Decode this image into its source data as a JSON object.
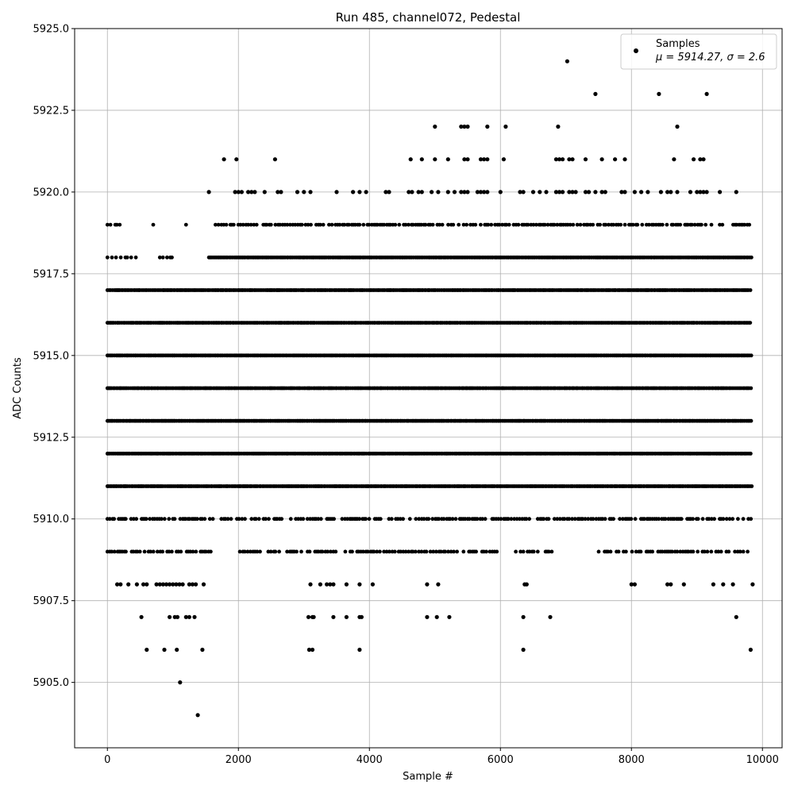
{
  "chart_data": {
    "type": "scatter",
    "title": "Run 485, channel072, Pedestal",
    "xlabel": "Sample #",
    "ylabel": "ADC Counts",
    "xlim": [
      -500,
      10300
    ],
    "ylim": [
      5903,
      5925
    ],
    "xticks": [
      0,
      2000,
      4000,
      6000,
      8000,
      10000
    ],
    "xtick_labels": [
      "0",
      "2000",
      "4000",
      "6000",
      "8000",
      "10000"
    ],
    "yticks": [
      5905.0,
      5907.5,
      5910.0,
      5912.5,
      5915.0,
      5917.5,
      5920.0,
      5922.5,
      5925.0
    ],
    "ytick_labels": [
      "5905.0",
      "5907.5",
      "5910.0",
      "5912.5",
      "5915.0",
      "5917.5",
      "5920.0",
      "5922.5",
      "5925.0"
    ],
    "grid": true,
    "legend_position": "top-right",
    "marker_color": "#000000",
    "series": [
      {
        "name": "Samples",
        "stats_label": "μ = 5914.27, σ = 2.6",
        "mean": 5914.27,
        "sigma": 2.6,
        "n_samples": 9840,
        "x_range": [
          0,
          9840
        ],
        "levels": [
          {
            "y": 5919,
            "x_ranges": [
              [
                0,
                200
              ],
              [
                700,
                720
              ],
              [
                1200,
                1220
              ],
              [
                1650,
                9840
              ]
            ]
          },
          {
            "y": 5918,
            "x_ranges": [
              [
                0,
                500
              ],
              [
                800,
                1000
              ],
              [
                1550,
                9840
              ]
            ]
          },
          {
            "y": 5917,
            "x_ranges": [
              [
                0,
                9840
              ]
            ]
          },
          {
            "y": 5916,
            "x_ranges": [
              [
                0,
                9840
              ]
            ]
          },
          {
            "y": 5915,
            "x_ranges": [
              [
                0,
                9840
              ]
            ]
          },
          {
            "y": 5914,
            "x_ranges": [
              [
                0,
                9840
              ]
            ]
          },
          {
            "y": 5913,
            "x_ranges": [
              [
                0,
                9840
              ]
            ]
          },
          {
            "y": 5912,
            "x_ranges": [
              [
                0,
                9840
              ]
            ]
          },
          {
            "y": 5911,
            "x_ranges": [
              [
                0,
                9840
              ]
            ]
          },
          {
            "y": 5910,
            "x_ranges": [
              [
                0,
                9840
              ]
            ]
          },
          {
            "y": 5909,
            "x_ranges": [
              [
                0,
                1600
              ],
              [
                2000,
                6000
              ],
              [
                6200,
                6800
              ],
              [
                7500,
                9840
              ]
            ]
          }
        ],
        "sparse_points": [
          {
            "x": 1550,
            "y": 5920
          },
          {
            "x": 1950,
            "y": 5920
          },
          {
            "x": 2000,
            "y": 5920
          },
          {
            "x": 2050,
            "y": 5920
          },
          {
            "x": 2150,
            "y": 5920
          },
          {
            "x": 2200,
            "y": 5920
          },
          {
            "x": 2250,
            "y": 5920
          },
          {
            "x": 2400,
            "y": 5920
          },
          {
            "x": 2600,
            "y": 5920
          },
          {
            "x": 2650,
            "y": 5920
          },
          {
            "x": 2900,
            "y": 5920
          },
          {
            "x": 3000,
            "y": 5920
          },
          {
            "x": 3100,
            "y": 5920
          },
          {
            "x": 3500,
            "y": 5920
          },
          {
            "x": 3750,
            "y": 5920
          },
          {
            "x": 3850,
            "y": 5920
          },
          {
            "x": 3950,
            "y": 5920
          },
          {
            "x": 4250,
            "y": 5920
          },
          {
            "x": 4300,
            "y": 5920
          },
          {
            "x": 4600,
            "y": 5920
          },
          {
            "x": 4650,
            "y": 5920
          },
          {
            "x": 4750,
            "y": 5920
          },
          {
            "x": 4800,
            "y": 5920
          },
          {
            "x": 4950,
            "y": 5920
          },
          {
            "x": 5050,
            "y": 5920
          },
          {
            "x": 5200,
            "y": 5920
          },
          {
            "x": 5300,
            "y": 5920
          },
          {
            "x": 5400,
            "y": 5920
          },
          {
            "x": 5450,
            "y": 5920
          },
          {
            "x": 5500,
            "y": 5920
          },
          {
            "x": 5650,
            "y": 5920
          },
          {
            "x": 5700,
            "y": 5920
          },
          {
            "x": 5750,
            "y": 5920
          },
          {
            "x": 5800,
            "y": 5920
          },
          {
            "x": 6000,
            "y": 5920
          },
          {
            "x": 6300,
            "y": 5920
          },
          {
            "x": 6350,
            "y": 5920
          },
          {
            "x": 6500,
            "y": 5920
          },
          {
            "x": 6600,
            "y": 5920
          },
          {
            "x": 6700,
            "y": 5920
          },
          {
            "x": 6850,
            "y": 5920
          },
          {
            "x": 6900,
            "y": 5920
          },
          {
            "x": 6950,
            "y": 5920
          },
          {
            "x": 7050,
            "y": 5920
          },
          {
            "x": 7100,
            "y": 5920
          },
          {
            "x": 7150,
            "y": 5920
          },
          {
            "x": 7300,
            "y": 5920
          },
          {
            "x": 7350,
            "y": 5920
          },
          {
            "x": 7450,
            "y": 5920
          },
          {
            "x": 7550,
            "y": 5920
          },
          {
            "x": 7600,
            "y": 5920
          },
          {
            "x": 7850,
            "y": 5920
          },
          {
            "x": 7900,
            "y": 5920
          },
          {
            "x": 8050,
            "y": 5920
          },
          {
            "x": 8150,
            "y": 5920
          },
          {
            "x": 8250,
            "y": 5920
          },
          {
            "x": 8450,
            "y": 5920
          },
          {
            "x": 8550,
            "y": 5920
          },
          {
            "x": 8600,
            "y": 5920
          },
          {
            "x": 8700,
            "y": 5920
          },
          {
            "x": 8900,
            "y": 5920
          },
          {
            "x": 9000,
            "y": 5920
          },
          {
            "x": 9050,
            "y": 5920
          },
          {
            "x": 9100,
            "y": 5920
          },
          {
            "x": 9150,
            "y": 5920
          },
          {
            "x": 9350,
            "y": 5920
          },
          {
            "x": 9600,
            "y": 5920
          },
          {
            "x": 1780,
            "y": 5921
          },
          {
            "x": 1970,
            "y": 5921
          },
          {
            "x": 2560,
            "y": 5921
          },
          {
            "x": 4630,
            "y": 5921
          },
          {
            "x": 4800,
            "y": 5921
          },
          {
            "x": 5000,
            "y": 5921
          },
          {
            "x": 5200,
            "y": 5921
          },
          {
            "x": 5450,
            "y": 5921
          },
          {
            "x": 5500,
            "y": 5921
          },
          {
            "x": 5700,
            "y": 5921
          },
          {
            "x": 5750,
            "y": 5921
          },
          {
            "x": 5800,
            "y": 5921
          },
          {
            "x": 6050,
            "y": 5921
          },
          {
            "x": 6850,
            "y": 5921
          },
          {
            "x": 6900,
            "y": 5921
          },
          {
            "x": 6950,
            "y": 5921
          },
          {
            "x": 7050,
            "y": 5921
          },
          {
            "x": 7100,
            "y": 5921
          },
          {
            "x": 7300,
            "y": 5921
          },
          {
            "x": 7550,
            "y": 5921
          },
          {
            "x": 7750,
            "y": 5921
          },
          {
            "x": 7900,
            "y": 5921
          },
          {
            "x": 8650,
            "y": 5921
          },
          {
            "x": 8950,
            "y": 5921
          },
          {
            "x": 9050,
            "y": 5921
          },
          {
            "x": 9100,
            "y": 5921
          },
          {
            "x": 5000,
            "y": 5922
          },
          {
            "x": 5400,
            "y": 5922
          },
          {
            "x": 5450,
            "y": 5922
          },
          {
            "x": 5500,
            "y": 5922
          },
          {
            "x": 5800,
            "y": 5922
          },
          {
            "x": 6080,
            "y": 5922
          },
          {
            "x": 6880,
            "y": 5922
          },
          {
            "x": 8700,
            "y": 5922
          },
          {
            "x": 7450,
            "y": 5923
          },
          {
            "x": 8420,
            "y": 5923
          },
          {
            "x": 9150,
            "y": 5923
          },
          {
            "x": 7020,
            "y": 5924
          },
          {
            "x": 150,
            "y": 5908
          },
          {
            "x": 200,
            "y": 5908
          },
          {
            "x": 320,
            "y": 5908
          },
          {
            "x": 450,
            "y": 5908
          },
          {
            "x": 550,
            "y": 5908
          },
          {
            "x": 600,
            "y": 5908
          },
          {
            "x": 750,
            "y": 5908
          },
          {
            "x": 800,
            "y": 5908
          },
          {
            "x": 850,
            "y": 5908
          },
          {
            "x": 900,
            "y": 5908
          },
          {
            "x": 950,
            "y": 5908
          },
          {
            "x": 1000,
            "y": 5908
          },
          {
            "x": 1050,
            "y": 5908
          },
          {
            "x": 1100,
            "y": 5908
          },
          {
            "x": 1150,
            "y": 5908
          },
          {
            "x": 1250,
            "y": 5908
          },
          {
            "x": 1300,
            "y": 5908
          },
          {
            "x": 1350,
            "y": 5908
          },
          {
            "x": 1470,
            "y": 5908
          },
          {
            "x": 3100,
            "y": 5908
          },
          {
            "x": 3250,
            "y": 5908
          },
          {
            "x": 3350,
            "y": 5908
          },
          {
            "x": 3400,
            "y": 5908
          },
          {
            "x": 3450,
            "y": 5908
          },
          {
            "x": 3650,
            "y": 5908
          },
          {
            "x": 3850,
            "y": 5908
          },
          {
            "x": 4050,
            "y": 5908
          },
          {
            "x": 4880,
            "y": 5908
          },
          {
            "x": 5050,
            "y": 5908
          },
          {
            "x": 6370,
            "y": 5908
          },
          {
            "x": 6400,
            "y": 5908
          },
          {
            "x": 8000,
            "y": 5908
          },
          {
            "x": 8050,
            "y": 5908
          },
          {
            "x": 8550,
            "y": 5908
          },
          {
            "x": 8600,
            "y": 5908
          },
          {
            "x": 8800,
            "y": 5908
          },
          {
            "x": 9250,
            "y": 5908
          },
          {
            "x": 9400,
            "y": 5908
          },
          {
            "x": 9550,
            "y": 5908
          },
          {
            "x": 9850,
            "y": 5908
          },
          {
            "x": 520,
            "y": 5907
          },
          {
            "x": 950,
            "y": 5907
          },
          {
            "x": 1030,
            "y": 5907
          },
          {
            "x": 1070,
            "y": 5907
          },
          {
            "x": 1200,
            "y": 5907
          },
          {
            "x": 1250,
            "y": 5907
          },
          {
            "x": 1330,
            "y": 5907
          },
          {
            "x": 3070,
            "y": 5907
          },
          {
            "x": 3130,
            "y": 5907
          },
          {
            "x": 3150,
            "y": 5907
          },
          {
            "x": 3450,
            "y": 5907
          },
          {
            "x": 3650,
            "y": 5907
          },
          {
            "x": 3850,
            "y": 5907
          },
          {
            "x": 3880,
            "y": 5907
          },
          {
            "x": 4880,
            "y": 5907
          },
          {
            "x": 5030,
            "y": 5907
          },
          {
            "x": 5220,
            "y": 5907
          },
          {
            "x": 6350,
            "y": 5907
          },
          {
            "x": 6760,
            "y": 5907
          },
          {
            "x": 9600,
            "y": 5907
          },
          {
            "x": 600,
            "y": 5906
          },
          {
            "x": 870,
            "y": 5906
          },
          {
            "x": 1060,
            "y": 5906
          },
          {
            "x": 1450,
            "y": 5906
          },
          {
            "x": 3080,
            "y": 5906
          },
          {
            "x": 3130,
            "y": 5906
          },
          {
            "x": 3850,
            "y": 5906
          },
          {
            "x": 6350,
            "y": 5906
          },
          {
            "x": 9820,
            "y": 5906
          },
          {
            "x": 1110,
            "y": 5905
          },
          {
            "x": 1380,
            "y": 5904
          }
        ]
      }
    ]
  }
}
